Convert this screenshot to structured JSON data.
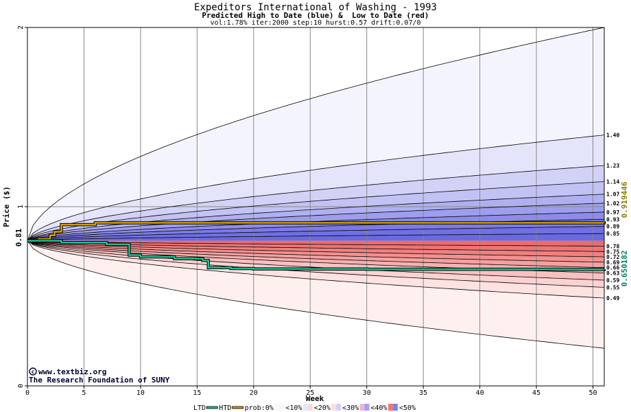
{
  "chart_data": {
    "type": "area",
    "title": "Expeditors International of Washing - 1993",
    "subtitle": "Predicted High to Date (blue) &  Low to Date (red)",
    "params": "vol:1.78% iter:2000 step:10 hurst:0.57 drift:0.07/0",
    "xlabel": "Week",
    "ylabel": "Price ($)",
    "xlim": [
      0,
      51
    ],
    "ylim": [
      0,
      2
    ],
    "x_ticks": [
      0,
      5,
      10,
      15,
      20,
      25,
      30,
      35,
      40,
      45,
      50
    ],
    "y_ticks": [
      0,
      1,
      2
    ],
    "start_price": 0.81,
    "start_label": "0.81",
    "high_levels": [
      1.4,
      1.23,
      1.14,
      1.07,
      1.02,
      0.97,
      0.93,
      0.89,
      0.85
    ],
    "high_labels": [
      "1.40",
      "1.23",
      "1.14",
      "1.07",
      "1.02",
      "0.97",
      "0.93",
      "0.89",
      "0.85"
    ],
    "low_levels": [
      0.78,
      0.75,
      0.72,
      0.69,
      0.66,
      0.63,
      0.59,
      0.55,
      0.49
    ],
    "low_labels": [
      "0.78",
      "0.75",
      "0.72",
      "0.69",
      "0.66",
      "0.63",
      "0.59",
      "0.55",
      "0.49"
    ],
    "outer_high": 2.0,
    "outer_low": 0.21,
    "htd": {
      "label": "0.919446",
      "value": 0.919446,
      "x": [
        0,
        1,
        2,
        2.4,
        3,
        6,
        51
      ],
      "y": [
        0.81,
        0.82,
        0.84,
        0.86,
        0.9,
        0.91,
        0.919446
      ]
    },
    "ltd": {
      "label": "0.650182",
      "value": 0.650182,
      "x": [
        0,
        3,
        7,
        9,
        10,
        13,
        15.5,
        16,
        18,
        20,
        25,
        30,
        40,
        45,
        47,
        51
      ],
      "y": [
        0.81,
        0.8,
        0.79,
        0.73,
        0.72,
        0.71,
        0.7,
        0.66,
        0.655,
        0.653,
        0.652,
        0.651,
        0.651,
        0.651,
        0.65,
        0.650182
      ]
    },
    "legend": {
      "ltd": "LTD",
      "htd": "HTD",
      "prob": "prob:0%",
      "bins": [
        "<10%",
        "<20%",
        "<30%",
        "<40%",
        "<50%"
      ]
    },
    "colors": {
      "htd": "#d4a000",
      "ltd": "#20c090",
      "high_label": "#8a7a00",
      "ltd_label": "#008060"
    }
  },
  "credits": {
    "line1": "www.textbiz.org",
    "line2": "The Research Foundation of SUNY"
  }
}
